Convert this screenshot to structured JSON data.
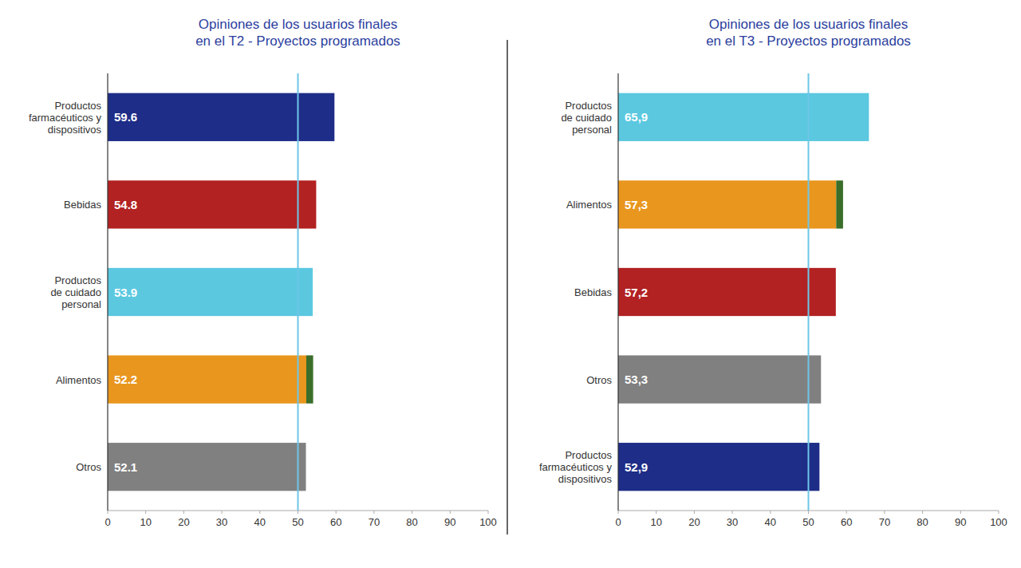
{
  "chart_data": [
    {
      "type": "bar",
      "orientation": "horizontal",
      "title": "Opiniones de los usuarios finales\nen el T2 - Proyectos programados",
      "categories": [
        "Productos\nfarmacéuticos y\ndispositivos",
        "Bebidas",
        "Productos\nde cuidado\npersonal",
        "Alimentos",
        "Otros"
      ],
      "values": [
        59.6,
        54.8,
        53.9,
        52.2,
        52.1
      ],
      "colors": [
        "#1e2d87",
        "#b22222",
        "#5bc8e0",
        "#e8961e",
        "#808080"
      ],
      "data_labels": true,
      "highlight": {
        "category": "Alimentos",
        "start": 52.2,
        "length": 1.8,
        "color": "#3a6e2a"
      },
      "reference_line": {
        "value": 50,
        "color": "#6ec6e8"
      },
      "xlim": [
        0,
        100
      ],
      "xticks": [
        0,
        10,
        20,
        30,
        40,
        50,
        60,
        70,
        80,
        90,
        100
      ],
      "grid": false
    },
    {
      "type": "bar",
      "orientation": "horizontal",
      "title": "Opiniones de los usuarios finales\nen el T3 - Proyectos programados",
      "categories": [
        "Productos\nde cuidado\npersonal",
        "Alimentos",
        "Bebidas",
        "Otros",
        "Productos\nfarmacéuticos y\ndispositivos"
      ],
      "values": [
        65.9,
        57.3,
        57.2,
        53.3,
        52.9
      ],
      "value_labels": [
        "65,9",
        "57,3",
        "57,2",
        "53,3",
        "52,9"
      ],
      "colors": [
        "#5bc8e0",
        "#e8961e",
        "#b22222",
        "#808080",
        "#1e2d87"
      ],
      "data_labels": true,
      "highlight": {
        "category": "Alimentos",
        "start": 57.3,
        "length": 1.8,
        "color": "#3a6e2a"
      },
      "reference_line": {
        "value": 50,
        "color": "#6ec6e8"
      },
      "xlim": [
        0,
        100
      ],
      "xticks": [
        0,
        10,
        20,
        30,
        40,
        50,
        60,
        70,
        80,
        90,
        100
      ],
      "grid": false
    }
  ]
}
